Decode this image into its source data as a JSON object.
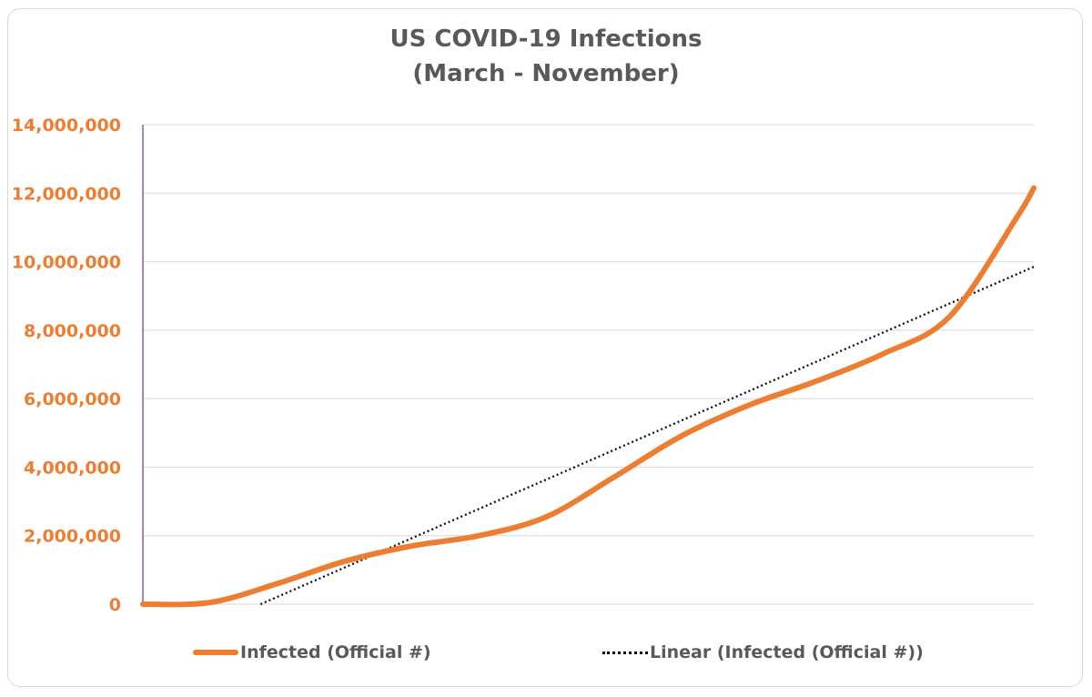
{
  "chart_data": {
    "type": "line",
    "title": "US COVID-19 Infections",
    "subtitle": "(March - November)",
    "xlabel": "",
    "ylabel": "",
    "ylim": [
      0,
      14000000
    ],
    "yticks": [
      0,
      2000000,
      4000000,
      6000000,
      8000000,
      10000000,
      12000000,
      14000000
    ],
    "ytick_labels": [
      "0",
      "2,000,000",
      "4,000,000",
      "6,000,000",
      "8,000,000",
      "10,000,000",
      "12,000,000",
      "14,000,000"
    ],
    "grid": true,
    "legend_position": "bottom",
    "x": [
      0,
      20,
      40,
      60,
      80,
      100,
      120,
      140,
      160,
      180,
      200,
      220,
      240,
      260,
      265
    ],
    "series": [
      {
        "name": "Infected (Official #)",
        "color": "#ed7d31",
        "style": "solid",
        "values": [
          0,
          50000,
          600000,
          1250000,
          1700000,
          2000000,
          2550000,
          3700000,
          4900000,
          5800000,
          6500000,
          7300000,
          8400000,
          11300000,
          12150000
        ]
      },
      {
        "name": "Linear (Infected (Official #))",
        "color": "#000000",
        "style": "dotted",
        "trendline": "linear",
        "start": [
          35,
          0
        ],
        "end": [
          265,
          9850000
        ]
      }
    ]
  }
}
